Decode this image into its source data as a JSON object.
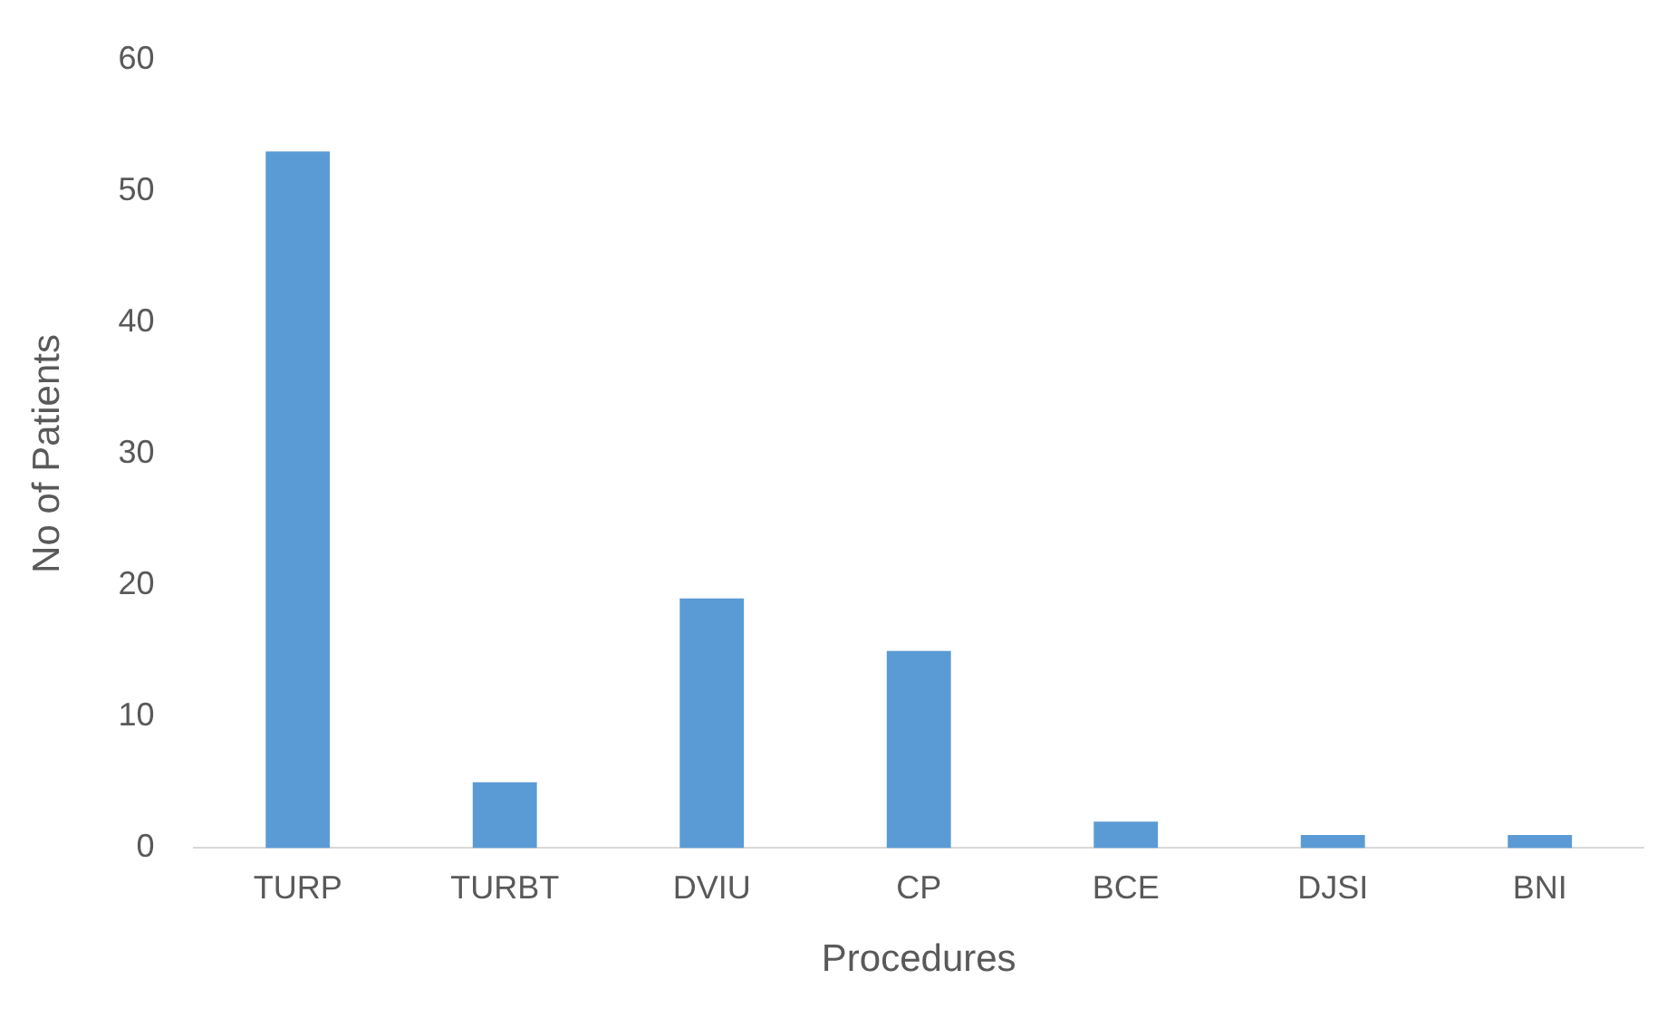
{
  "chart_data": {
    "type": "bar",
    "xlabel": "Procedures",
    "ylabel": "No of Patients",
    "categories": [
      "TURP",
      "TURBT",
      "DVIU",
      "CP",
      "BCE",
      "DJSI",
      "BNI"
    ],
    "series": [
      {
        "color": "#5b9bd5",
        "values": [
          53,
          5,
          19,
          15,
          2,
          1,
          1
        ]
      }
    ],
    "ylim": [
      0,
      60
    ],
    "yticks": [
      0,
      10,
      20,
      30,
      40,
      50,
      60
    ],
    "grid": false,
    "legend": false
  }
}
